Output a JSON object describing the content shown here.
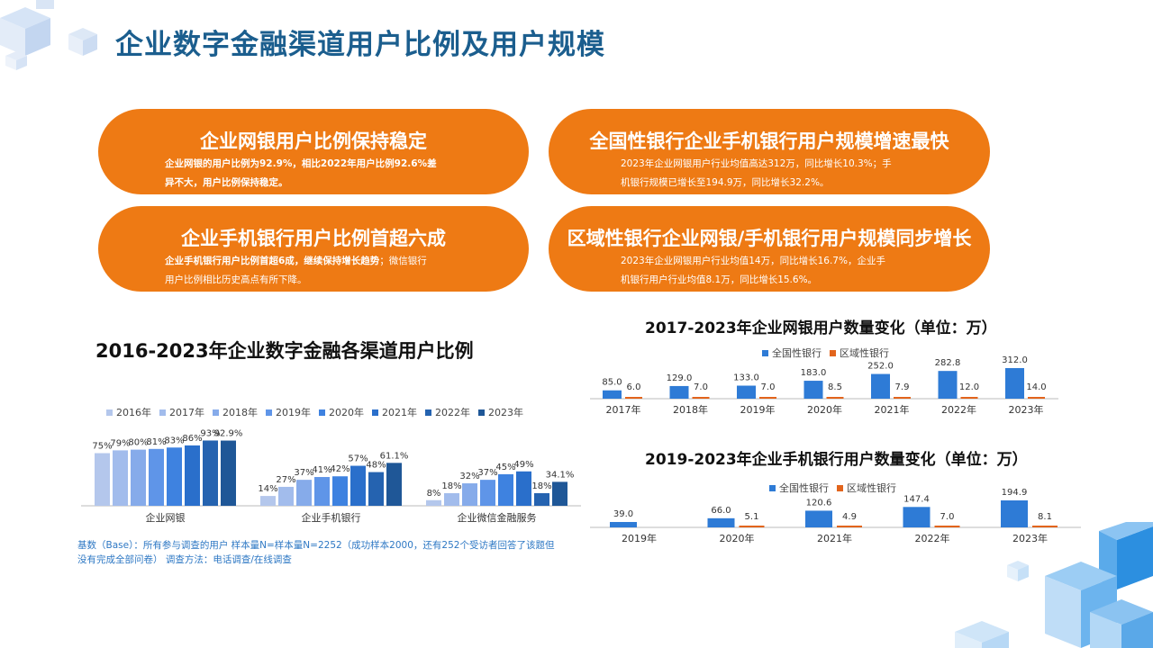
{
  "title": "企业数字金融渠道用户比例及用户规模",
  "cards": [
    {
      "title": "企业网银用户比例保持稳定",
      "body": "企业网银的用户比例为92.9%，相比2022年用户比例92.6%差异不大，用户比例保持稳定。",
      "body_line1": "企业网银的用户比例为92.9%，相比2022年用户比例92.6%差",
      "body_line2": "异不大，用户比例保持稳定。"
    },
    {
      "title": "全国性银行企业手机银行用户规模增速最快",
      "body_line1": "2023年企业网银用户行业均值高达312万，同比增长10.3%；手",
      "body_line2": "机银行规模已增长至194.9万，同比增长32.2%。"
    },
    {
      "title": "企业手机银行用户比例首超六成",
      "body_bold": "企业手机银行用户比例首超6成，继续保持增长趋势",
      "body_line1_rest": "；微信银行",
      "body_line2": "用户比例相比历史高点有所下降。"
    },
    {
      "title": "区域性银行企业网银/手机银行用户规模同步增长",
      "body_line1": "2023年企业网银用户行业均值14万，同比增长16.7%，企业手",
      "body_line2": "机银行用户行业均值8.1万，同比增长15.6%。"
    }
  ],
  "chart_data": [
    {
      "type": "bar",
      "title": "2016-2023年企业数字金融各渠道用户比例",
      "categories": [
        "企业网银",
        "企业手机银行",
        "企业微信金融服务"
      ],
      "series": [
        {
          "name": "2016年",
          "values": [
            75,
            14,
            8
          ],
          "labels": [
            "75%",
            "14%",
            "8%"
          ]
        },
        {
          "name": "2017年",
          "values": [
            79,
            27,
            18
          ],
          "labels": [
            "79%",
            "27%",
            "18%"
          ]
        },
        {
          "name": "2018年",
          "values": [
            80,
            37,
            32
          ],
          "labels": [
            "80%",
            "37%",
            "32%"
          ]
        },
        {
          "name": "2019年",
          "values": [
            81,
            41,
            37
          ],
          "labels": [
            "81%",
            "41%",
            "37%"
          ]
        },
        {
          "name": "2020年",
          "values": [
            83,
            42,
            45
          ],
          "labels": [
            "83%",
            "42%",
            "45%"
          ]
        },
        {
          "name": "2021年",
          "values": [
            86,
            57,
            49
          ],
          "labels": [
            "86%",
            "57%",
            "49%"
          ]
        },
        {
          "name": "2022年",
          "values": [
            93,
            48,
            18
          ],
          "labels": [
            "93%",
            "48%",
            "18%"
          ]
        },
        {
          "name": "2023年",
          "values": [
            92.9,
            61.1,
            34.1
          ],
          "labels": [
            "92.9%",
            "61.1%",
            "34.1%"
          ]
        }
      ],
      "colors": [
        "#B4C7EC",
        "#A2BCEC",
        "#86ABEA",
        "#5F95E8",
        "#3E82E0",
        "#2A6FCB",
        "#2563B0",
        "#1F5797"
      ],
      "ylim": [
        0,
        100
      ],
      "legend": "top"
    },
    {
      "type": "bar",
      "title": "2017-2023年企业网银用户数量变化（单位：万）",
      "categories": [
        "2017年",
        "2018年",
        "2019年",
        "2020年",
        "2021年",
        "2022年",
        "2023年"
      ],
      "series": [
        {
          "name": "全国性银行",
          "values": [
            85.0,
            129.0,
            133.0,
            183.0,
            252.0,
            282.8,
            312.0
          ],
          "labels": [
            "85.0",
            "129.0",
            "133.0",
            "183.0",
            "252.0",
            "282.8",
            "312.0"
          ]
        },
        {
          "name": "区域性银行",
          "values": [
            6.0,
            7.0,
            7.0,
            8.5,
            7.9,
            12.0,
            14.0
          ],
          "labels": [
            "6.0",
            "7.0",
            "7.0",
            "8.5",
            "7.9",
            "12.0",
            "14.0"
          ]
        }
      ],
      "colors": [
        "#2E7BD6",
        "#E2641C"
      ],
      "legend": "top"
    },
    {
      "type": "bar",
      "title": "2019-2023年企业手机银行用户数量变化（单位：万）",
      "categories": [
        "2019年",
        "2020年",
        "2021年",
        "2022年",
        "2023年"
      ],
      "series": [
        {
          "name": "全国性银行",
          "values": [
            39.0,
            66.0,
            120.6,
            147.4,
            194.9
          ],
          "labels": [
            "39.0",
            "66.0",
            "120.6",
            "147.4",
            "194.9"
          ]
        },
        {
          "name": "区域性银行",
          "values": [
            null,
            5.1,
            4.9,
            7.0,
            8.1
          ],
          "labels": [
            "",
            "5.1",
            "4.9",
            "7.0",
            "8.1"
          ]
        }
      ],
      "colors": [
        "#2E7BD6",
        "#E2641C"
      ],
      "legend": "top"
    }
  ],
  "footnote": {
    "line1": "基数（Base）：所有参与调查的用户  样本量N=样本量N=2252（成功样本2000，还有252个受访者回答了该题但",
    "line2": "没有完成全部问卷）      调查方法：电话调查/在线调查"
  },
  "accent": "#EE7A14",
  "title_color": "#1B5E8E"
}
